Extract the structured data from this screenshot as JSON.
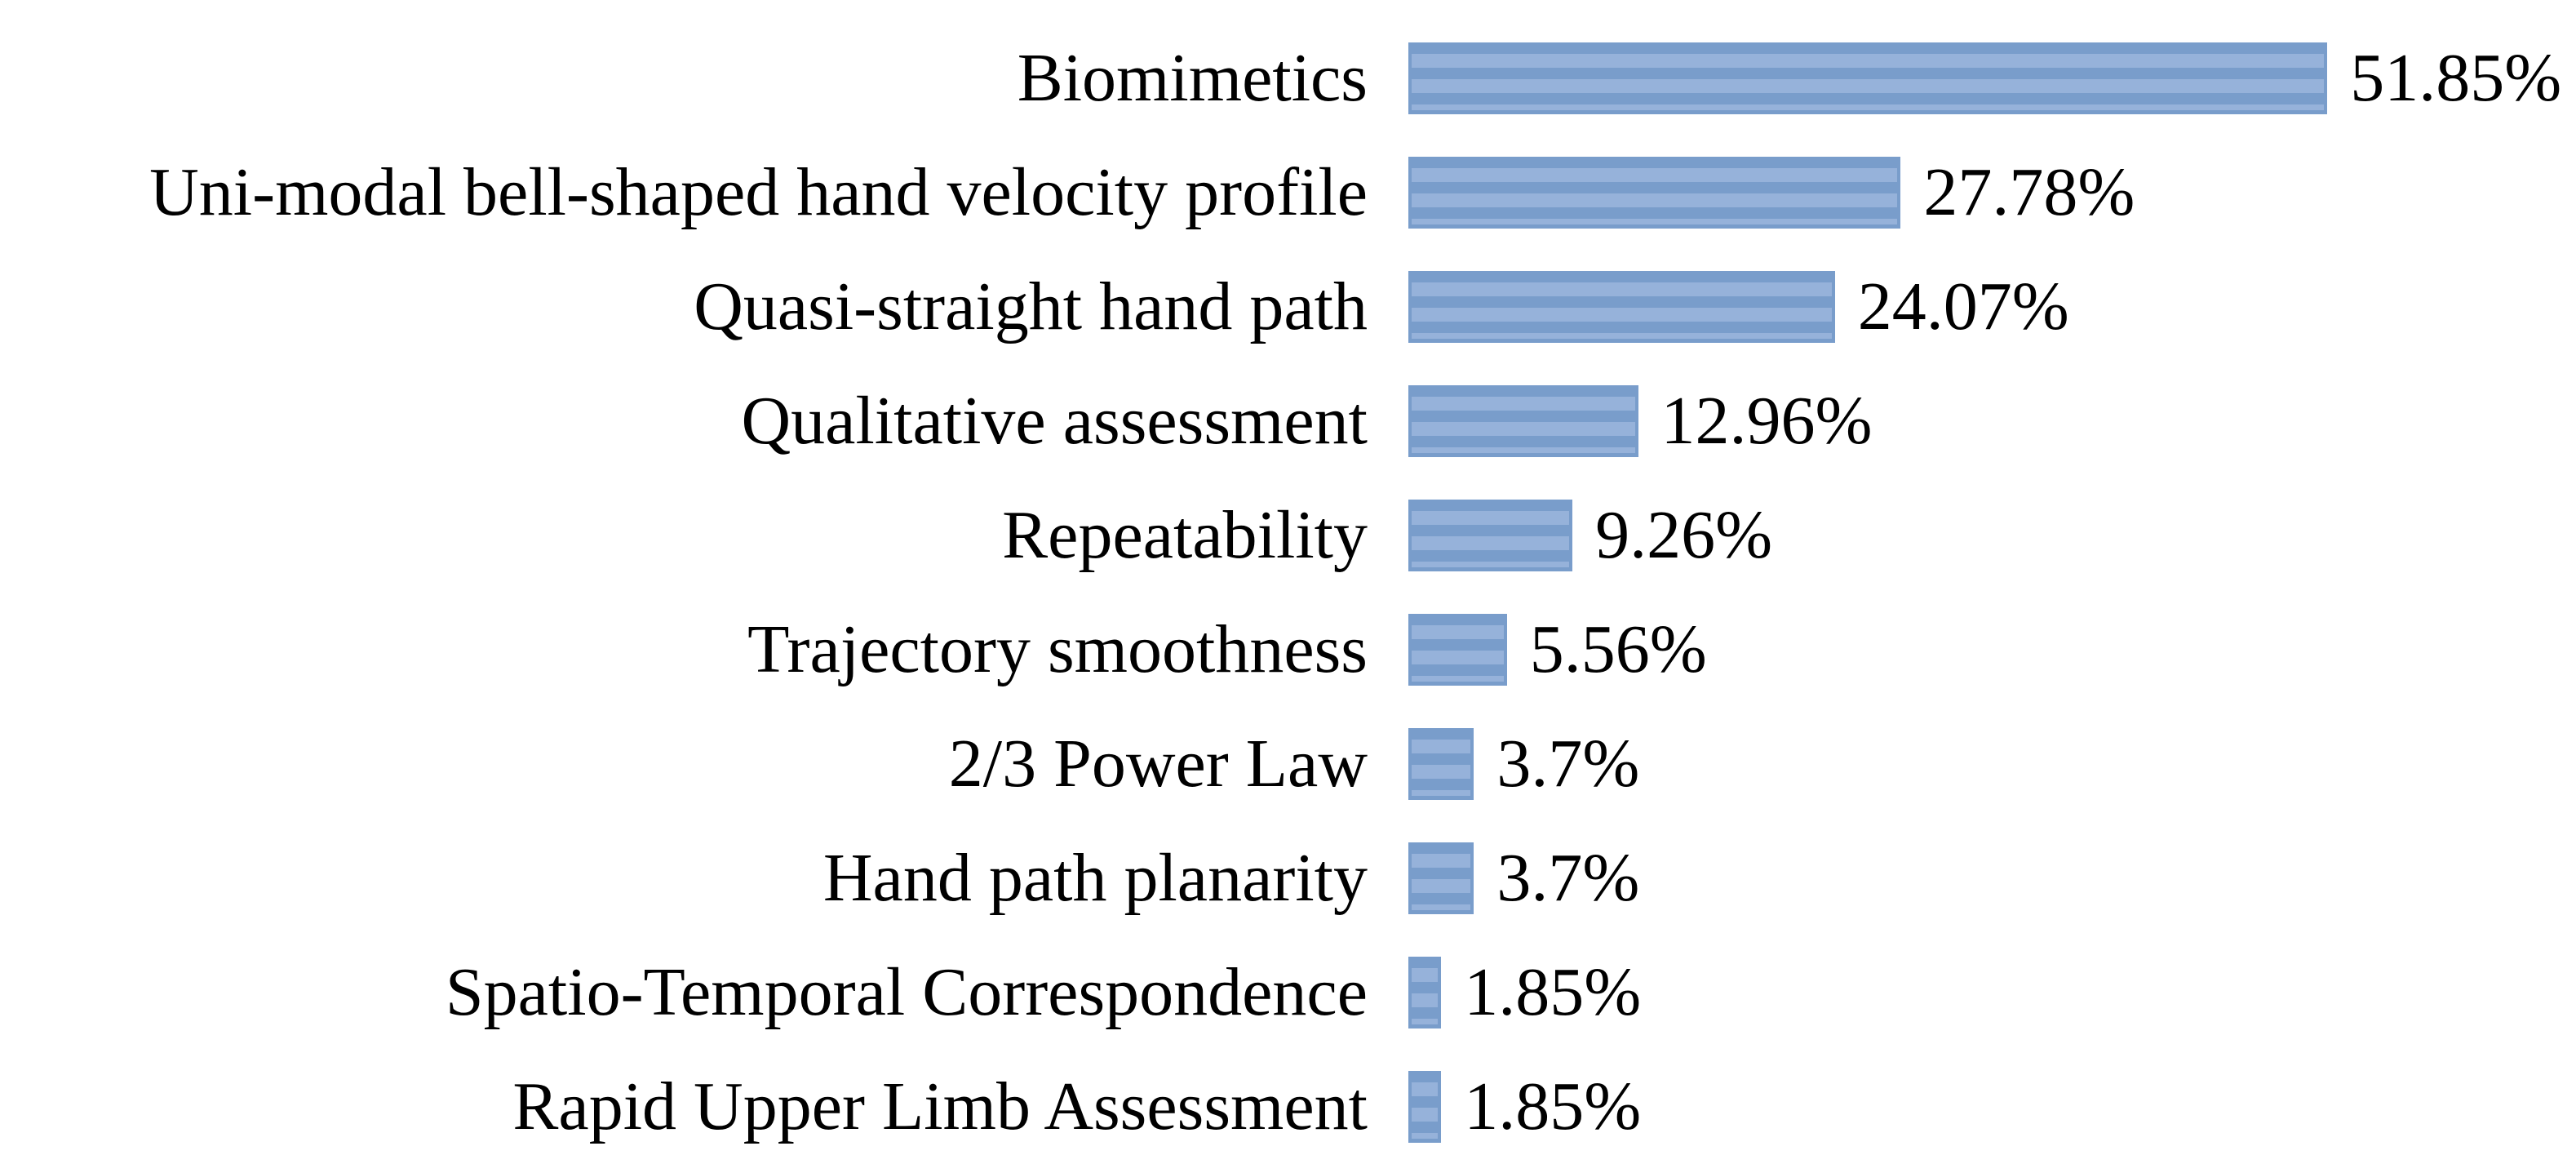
{
  "chart_data": {
    "type": "bar",
    "orientation": "horizontal",
    "title": "",
    "xlabel": "",
    "ylabel": "",
    "axes_visible": false,
    "grid": false,
    "legend": false,
    "data_label_position": "outside-end",
    "xlim": [
      0,
      53
    ],
    "categories": [
      "Biomimetics",
      "Uni-modal bell-shaped hand velocity profile",
      "Quasi-straight hand path",
      "Qualitative assessment",
      "Repeatability",
      "Trajectory smoothness",
      "2/3 Power Law",
      "Hand path planarity",
      "Spatio-Temporal Correspondence",
      "Rapid Upper Limb Assessment"
    ],
    "values": [
      51.85,
      27.78,
      24.07,
      12.96,
      9.26,
      5.56,
      3.7,
      3.7,
      1.85,
      1.85
    ],
    "value_labels": [
      "51.85%",
      "27.78%",
      "24.07%",
      "12.96%",
      "9.26%",
      "5.56%",
      "3.7%",
      "3.7%",
      "1.85%",
      "1.85%"
    ],
    "colors": {
      "bar_stripe_dark": "#799dcb",
      "bar_stripe_light": "#96b2da",
      "text": "#000000",
      "background": "#ffffff"
    }
  }
}
